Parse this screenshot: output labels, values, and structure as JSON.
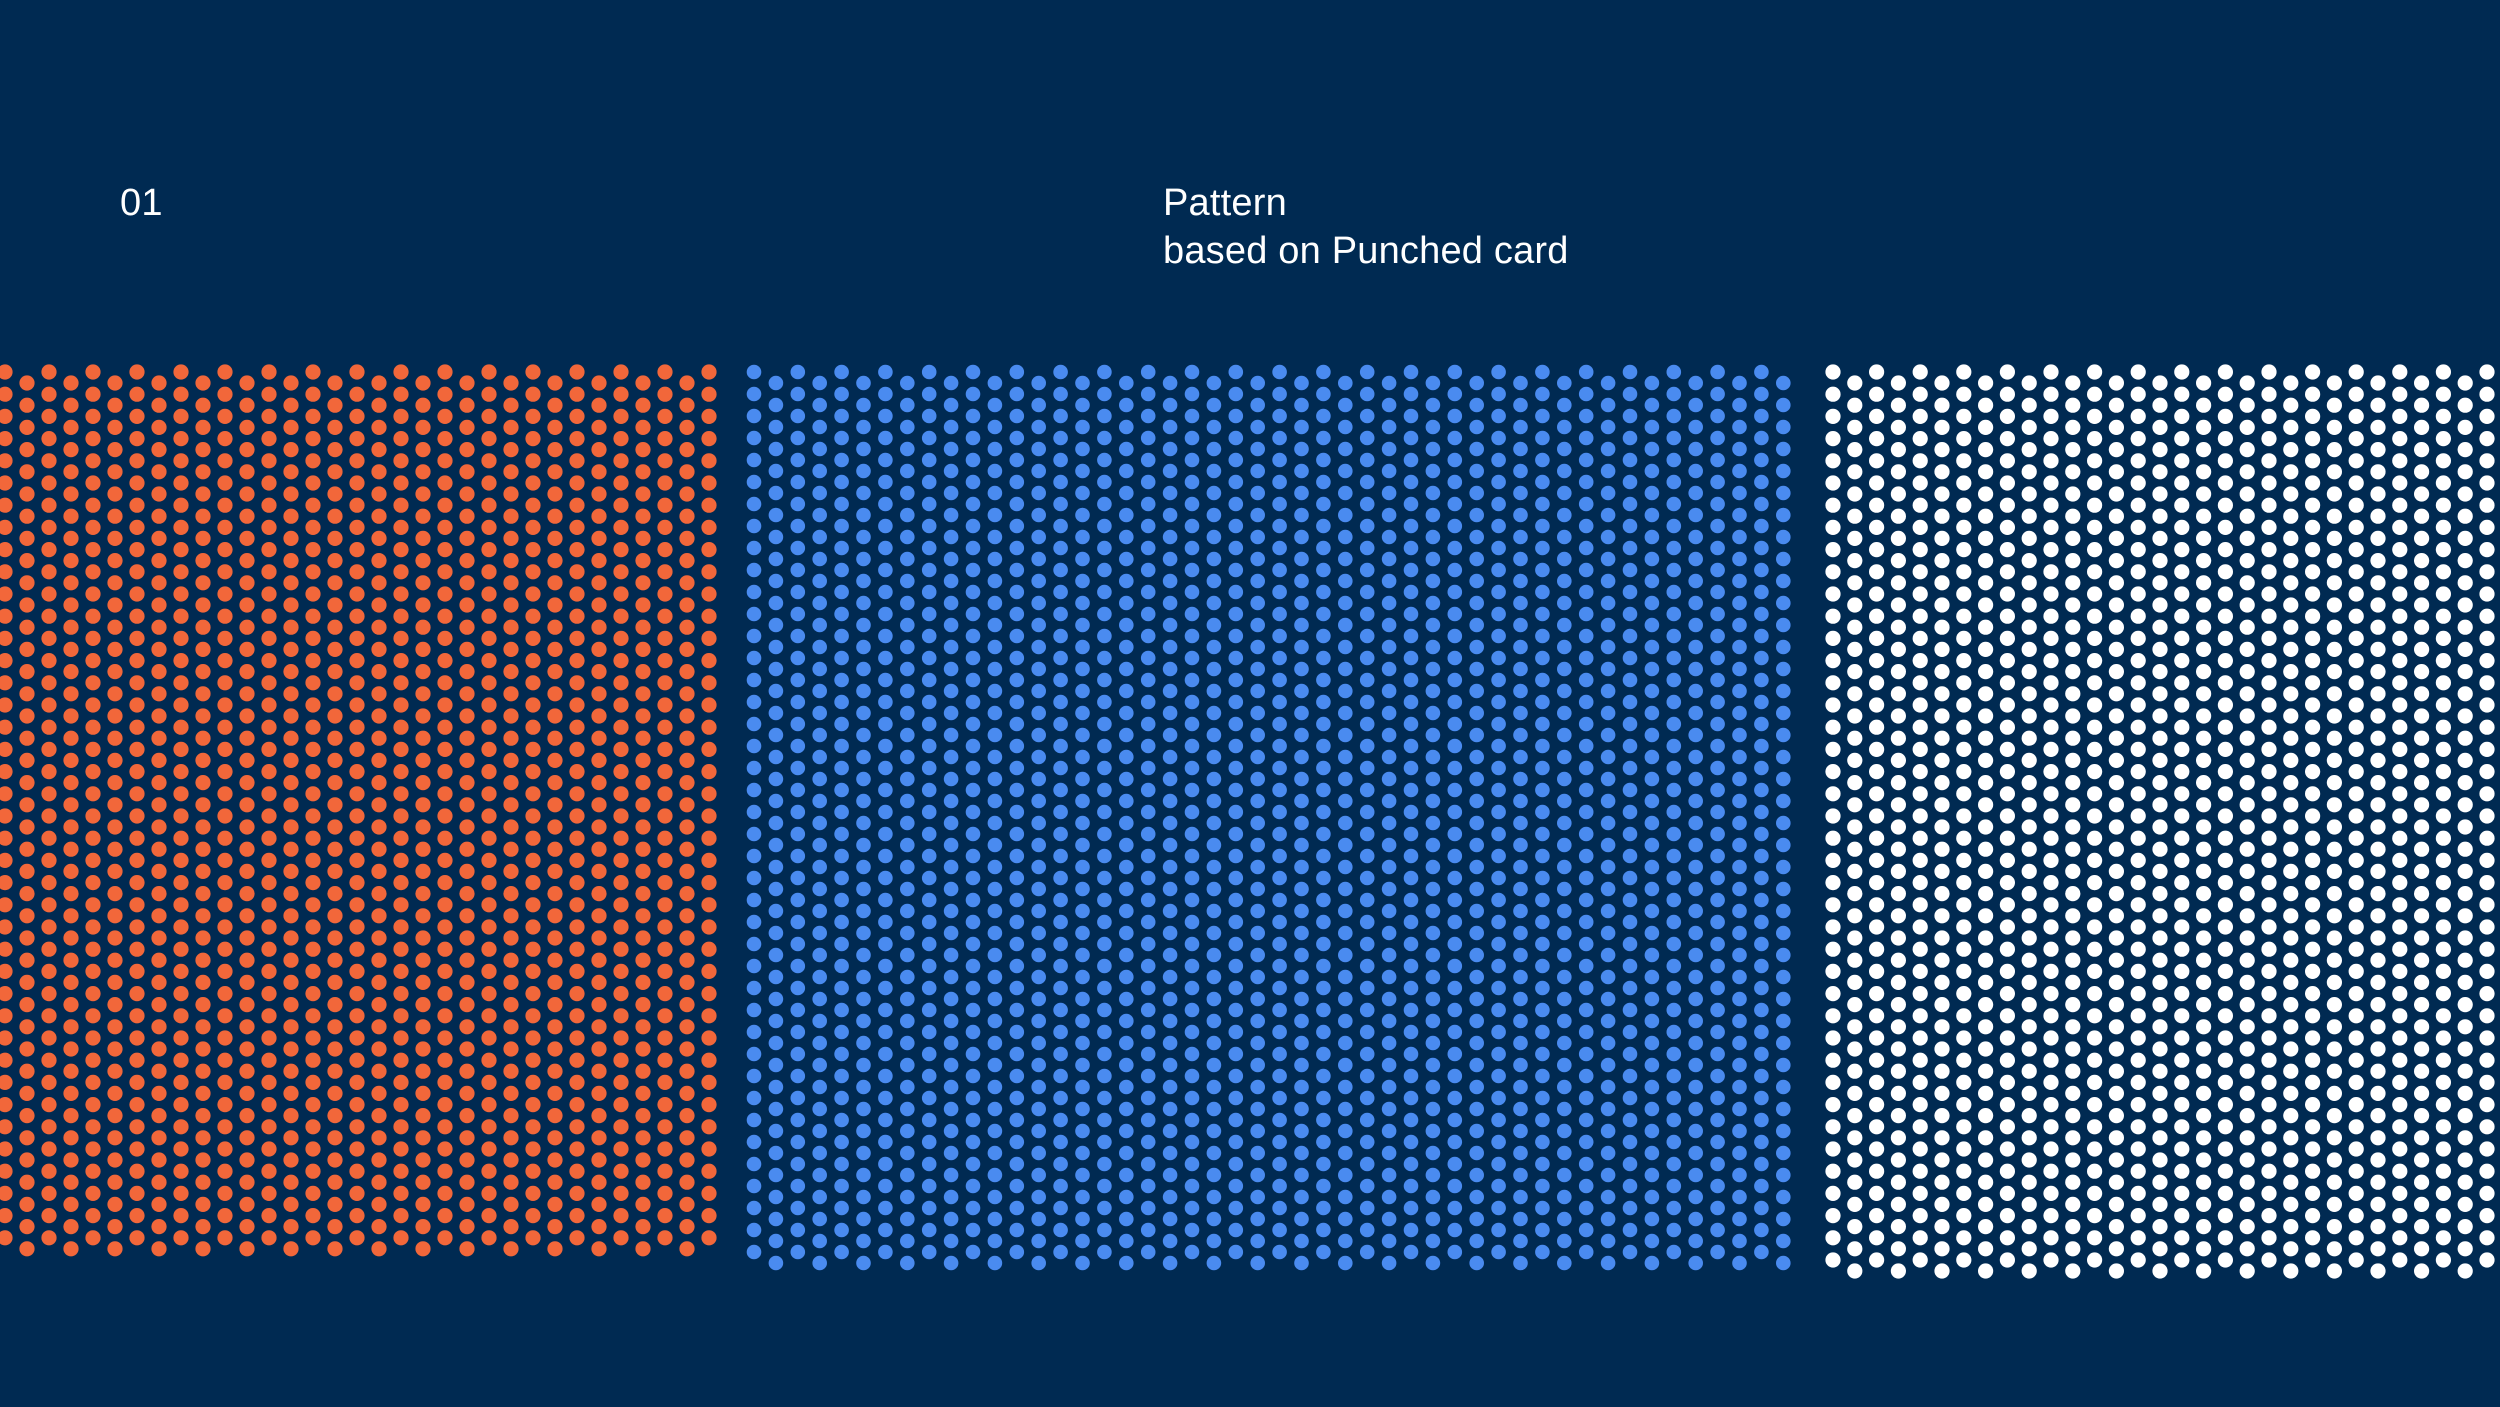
{
  "slide": {
    "number": "01",
    "heading_line_1": "Pattern",
    "heading_line_2": "based on Punched card"
  },
  "colors": {
    "background": "#002a52",
    "text": "#ffffff",
    "pattern_orange": "#f2673a",
    "pattern_blue": "#4a8bf0",
    "pattern_white": "#ffffff"
  },
  "patterns": [
    {
      "name": "orange-dot-pattern",
      "color_key": "pattern_orange"
    },
    {
      "name": "blue-dot-pattern",
      "color_key": "pattern_blue"
    },
    {
      "name": "white-dot-pattern",
      "color_key": "pattern_white"
    }
  ]
}
